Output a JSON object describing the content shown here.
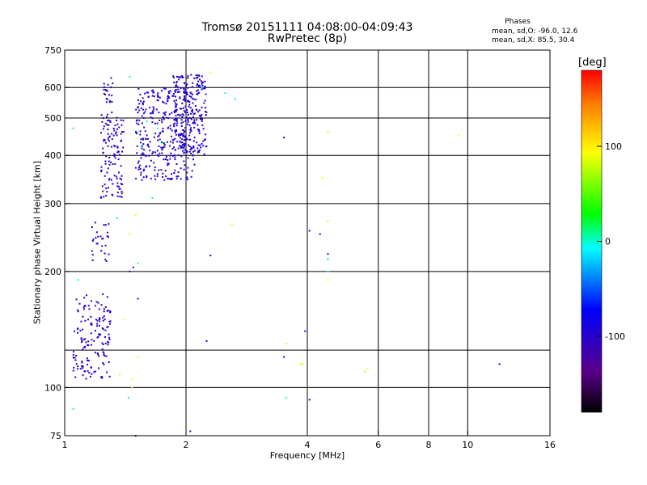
{
  "chart_data": {
    "type": "scatter",
    "title": "Tromsø 20151111 04:08:00-04:09:43",
    "subtitle": "RwPretec (8p)",
    "xlabel": "Frequency [MHz]",
    "ylabel": "Stationary phase Virtual Height [km]",
    "x_scale": "log",
    "y_scale": "log",
    "xlim": [
      1,
      16
    ],
    "ylim": [
      75,
      750
    ],
    "grid": true,
    "x_ticks": [
      "1",
      "2",
      "4",
      "6",
      "8",
      "10",
      "16"
    ],
    "x_tick_values": [
      1,
      2,
      4,
      6,
      8,
      10,
      16
    ],
    "x_grid": [
      2,
      4,
      6,
      8,
      10
    ],
    "y_ticks": [
      "75",
      "100",
      "200",
      "300",
      "400",
      "500",
      "600",
      "750"
    ],
    "y_tick_values": [
      75,
      100,
      200,
      300,
      400,
      500,
      600,
      750
    ],
    "y_grid": [
      100,
      125,
      200,
      300,
      400,
      500,
      600
    ],
    "legend": {
      "title": "Phases",
      "line1": "mean, sd,O: -96.0, 12.6",
      "line2": "mean, sd,X:  85.5, 30.4",
      "placement": "top-right"
    },
    "colorbar": {
      "label": "[deg]",
      "ticks": [
        "100",
        "0",
        "-100"
      ],
      "tick_values": [
        100,
        0,
        -100
      ],
      "range": [
        -180,
        180
      ],
      "colormap": "rainbow"
    },
    "series": [
      {
        "trace": "O",
        "phase": -96,
        "clusters": [
          {
            "x": [
              1.05,
              1.3
            ],
            "y": [
              105,
              175
            ],
            "n": 150
          },
          {
            "x": [
              1.23,
              1.4
            ],
            "y": [
              310,
              520
            ],
            "n": 120
          },
          {
            "x": [
              1.25,
              1.32
            ],
            "y": [
              530,
              640
            ],
            "n": 20
          },
          {
            "x": [
              1.16,
              1.29
            ],
            "y": [
              212,
              268
            ],
            "n": 28
          },
          {
            "x": [
              1.5,
              2.1
            ],
            "y": [
              345,
              600
            ],
            "n": 350
          },
          {
            "x": [
              1.85,
              2.25
            ],
            "y": [
              400,
              650
            ],
            "n": 200
          }
        ],
        "points": [
          {
            "x": 2.3,
            "y": 220
          },
          {
            "x": 2.25,
            "y": 132
          },
          {
            "x": 3.5,
            "y": 445
          },
          {
            "x": 4.05,
            "y": 255
          },
          {
            "x": 3.95,
            "y": 140
          },
          {
            "x": 3.5,
            "y": 120
          },
          {
            "x": 4.3,
            "y": 250
          },
          {
            "x": 4.5,
            "y": 222
          },
          {
            "x": 4.5,
            "y": 215
          },
          {
            "x": 4.05,
            "y": 93
          },
          {
            "x": 2.05,
            "y": 77
          },
          {
            "x": 1.5,
            "y": 75
          },
          {
            "x": 12.0,
            "y": 115
          },
          {
            "x": 1.55,
            "y": 530
          },
          {
            "x": 1.45,
            "y": 200
          },
          {
            "x": 1.52,
            "y": 170
          },
          {
            "x": 1.48,
            "y": 205
          }
        ]
      },
      {
        "trace": "X",
        "phase": 85.5,
        "points": [
          {
            "x": 2.6,
            "y": 265
          },
          {
            "x": 3.85,
            "y": 115
          },
          {
            "x": 3.9,
            "y": 115
          },
          {
            "x": 4.5,
            "y": 460
          },
          {
            "x": 4.35,
            "y": 350
          },
          {
            "x": 4.5,
            "y": 270
          },
          {
            "x": 4.5,
            "y": 190
          },
          {
            "x": 5.55,
            "y": 110
          },
          {
            "x": 5.65,
            "y": 112
          },
          {
            "x": 9.5,
            "y": 450
          },
          {
            "x": 1.45,
            "y": 250
          },
          {
            "x": 1.47,
            "y": 105
          },
          {
            "x": 1.47,
            "y": 100
          },
          {
            "x": 1.5,
            "y": 280
          },
          {
            "x": 1.52,
            "y": 120
          },
          {
            "x": 1.37,
            "y": 108
          },
          {
            "x": 2.3,
            "y": 655
          },
          {
            "x": 3.55,
            "y": 130
          },
          {
            "x": 1.4,
            "y": 320
          },
          {
            "x": 1.4,
            "y": 150
          }
        ]
      },
      {
        "trace": "other",
        "phase": 0,
        "points": [
          {
            "x": 1.05,
            "y": 470
          },
          {
            "x": 1.08,
            "y": 190
          },
          {
            "x": 1.05,
            "y": 88
          },
          {
            "x": 1.65,
            "y": 310
          },
          {
            "x": 1.45,
            "y": 640
          },
          {
            "x": 1.52,
            "y": 460
          },
          {
            "x": 1.55,
            "y": 420
          },
          {
            "x": 1.6,
            "y": 490
          },
          {
            "x": 1.7,
            "y": 470
          },
          {
            "x": 1.75,
            "y": 430
          },
          {
            "x": 4.5,
            "y": 200
          },
          {
            "x": 4.5,
            "y": 215
          },
          {
            "x": 3.55,
            "y": 94
          },
          {
            "x": 1.44,
            "y": 94
          },
          {
            "x": 2.2,
            "y": 600
          },
          {
            "x": 2.5,
            "y": 580
          },
          {
            "x": 2.65,
            "y": 560
          },
          {
            "x": 1.35,
            "y": 275
          },
          {
            "x": 1.52,
            "y": 210
          }
        ]
      }
    ]
  }
}
